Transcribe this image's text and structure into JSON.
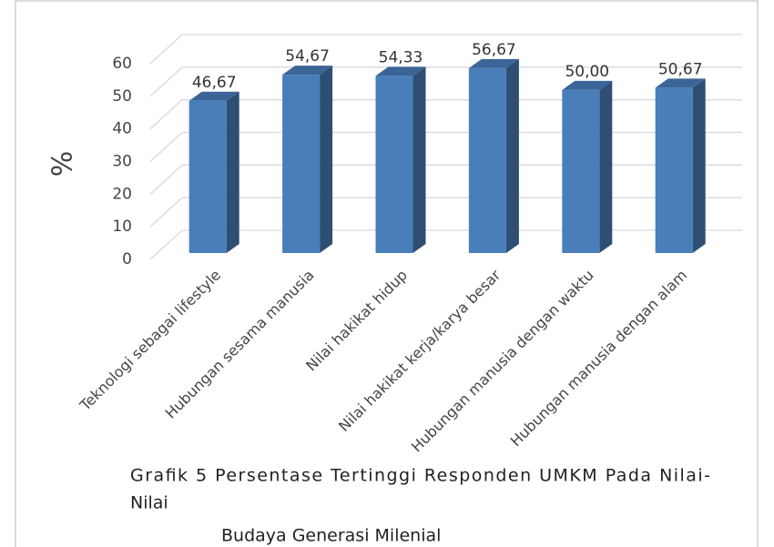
{
  "chart_data": {
    "type": "bar3d",
    "caption": [
      "Grafik 5 Persentase Tertinggi Responden UMKM Pada Nilai-",
      "Nilai",
      "Budaya Generasi Milenial"
    ],
    "y_label": "%",
    "categories": [
      "Teknologi sebagai lifestyle",
      "Hubungan sesama manusia",
      "Nilai hakikat hidup",
      "Nilai hakikat kerja/karya besar",
      "Hubungan manusia dengan waktu",
      "Hubungan manusia dengan alam"
    ],
    "values": [
      46.67,
      54.67,
      54.33,
      56.67,
      50.0,
      50.67
    ],
    "value_labels": [
      "46,67",
      "54,67",
      "54,33",
      "56,67",
      "50,00",
      "50,67"
    ],
    "color": "#4a7ebb",
    "ylim": [
      0,
      60
    ],
    "yticks": [
      0,
      10,
      20,
      30,
      40,
      50,
      60
    ],
    "grid": true
  }
}
